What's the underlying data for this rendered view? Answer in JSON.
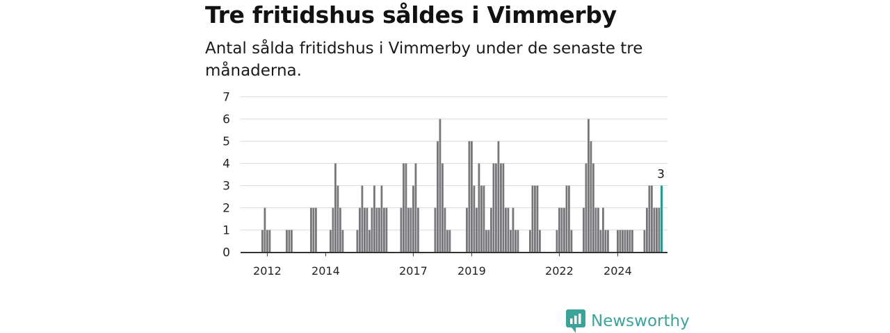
{
  "title": "Tre fritidshus såldes i Vimmerby",
  "subtitle": "Antal sålda fritidshus i Vimmerby under de senaste tre månaderna.",
  "brand": {
    "name": "Newsworthy",
    "color": "#3aa39a",
    "icon": "newsworthy-logo-icon"
  },
  "colors": {
    "bar": "#77767b",
    "highlight": "#1f9e93",
    "grid": "#dcdcdc",
    "axis": "#333333"
  },
  "chart_data": {
    "type": "bar",
    "ylim": [
      0,
      7
    ],
    "yticks": [
      0,
      1,
      2,
      3,
      4,
      5,
      6,
      7
    ],
    "grid": true,
    "xticks": [
      {
        "label": "2012",
        "index": 2
      },
      {
        "label": "2014",
        "index": 26
      },
      {
        "label": "2017",
        "index": 62
      },
      {
        "label": "2019",
        "index": 86
      },
      {
        "label": "2022",
        "index": 122
      },
      {
        "label": "2024",
        "index": 146
      }
    ],
    "values": [
      1,
      2,
      1,
      1,
      0,
      0,
      0,
      0,
      0,
      0,
      1,
      1,
      1,
      0,
      0,
      0,
      0,
      0,
      0,
      0,
      2,
      2,
      2,
      0,
      0,
      0,
      0,
      0,
      1,
      2,
      4,
      3,
      2,
      1,
      0,
      0,
      0,
      0,
      0,
      1,
      2,
      3,
      2,
      2,
      1,
      2,
      3,
      2,
      2,
      3,
      2,
      2,
      0,
      0,
      0,
      0,
      0,
      2,
      4,
      4,
      2,
      2,
      3,
      4,
      2,
      0,
      0,
      0,
      0,
      0,
      0,
      2,
      5,
      6,
      4,
      2,
      1,
      1,
      0,
      0,
      0,
      0,
      0,
      0,
      2,
      5,
      5,
      3,
      2,
      4,
      3,
      3,
      1,
      1,
      2,
      4,
      4,
      5,
      4,
      4,
      2,
      2,
      1,
      2,
      1,
      1,
      0,
      0,
      0,
      0,
      1,
      3,
      3,
      3,
      1,
      0,
      0,
      0,
      0,
      0,
      0,
      1,
      2,
      2,
      2,
      3,
      3,
      1,
      0,
      0,
      0,
      0,
      2,
      4,
      6,
      5,
      4,
      2,
      2,
      1,
      2,
      1,
      1,
      0,
      0,
      0,
      1,
      1,
      1,
      1,
      1,
      1,
      1,
      0,
      0,
      0,
      0,
      1,
      2,
      3,
      3,
      2,
      2,
      2,
      3
    ],
    "highlight_last": true,
    "last_label": "3"
  }
}
